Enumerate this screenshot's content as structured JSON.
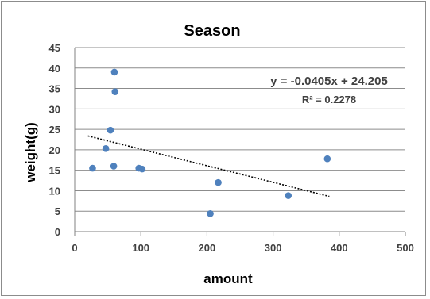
{
  "chart_data": {
    "type": "scatter",
    "title": "Season",
    "xlabel": "amount",
    "ylabel": "weight(g)",
    "xlim": [
      0,
      500
    ],
    "ylim": [
      0,
      45
    ],
    "xticks": [
      "0",
      "100",
      "200",
      "300",
      "400",
      "500"
    ],
    "yticks": [
      "0",
      "5",
      "10",
      "15",
      "20",
      "25",
      "30",
      "35",
      "40",
      "45"
    ],
    "grid": "horizontal",
    "legend": "none",
    "marker_color": "#4f81bd",
    "points": [
      {
        "x": 27,
        "y": 15.5
      },
      {
        "x": 47,
        "y": 20.3
      },
      {
        "x": 54,
        "y": 24.8
      },
      {
        "x": 59,
        "y": 16
      },
      {
        "x": 60,
        "y": 39
      },
      {
        "x": 61,
        "y": 34.2
      },
      {
        "x": 97,
        "y": 15.5
      },
      {
        "x": 102,
        "y": 15.3
      },
      {
        "x": 205,
        "y": 4.4
      },
      {
        "x": 217,
        "y": 12
      },
      {
        "x": 323,
        "y": 8.8
      },
      {
        "x": 382,
        "y": 17.8
      }
    ],
    "trendline": {
      "type": "linear",
      "slope": -0.0405,
      "intercept": 24.205,
      "x_range": [
        20,
        385
      ],
      "equation_label": "y = -0.0405x + 24.205",
      "r2_label": "R² = 0.2278"
    }
  }
}
